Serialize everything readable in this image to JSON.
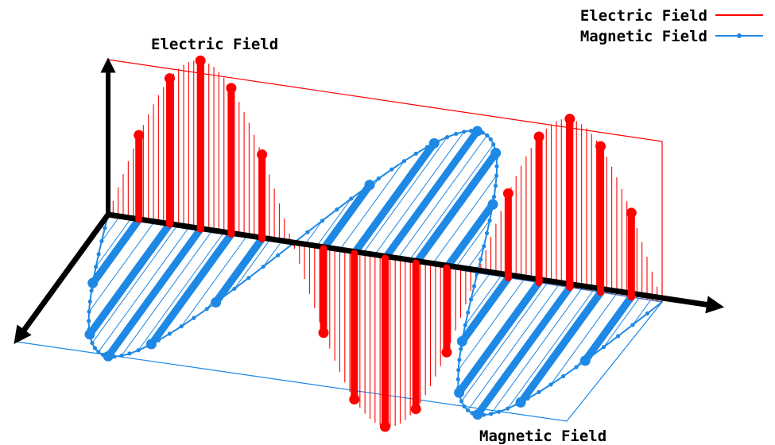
{
  "labels": {
    "electric_title": "Electric Field",
    "magnetic_title": "Magnetic Field"
  },
  "legend": [
    {
      "label": "Electric Field",
      "color": "#ff0000",
      "marker": "line"
    },
    {
      "label": "Magnetic Field",
      "color": "#1e88e5",
      "marker": "line-with-points"
    }
  ],
  "colors": {
    "electric": "#ff0000",
    "magnetic": "#1e88e5",
    "axes": "#000000"
  },
  "wave": {
    "cycles": 1.5,
    "phase_start": "zero"
  }
}
